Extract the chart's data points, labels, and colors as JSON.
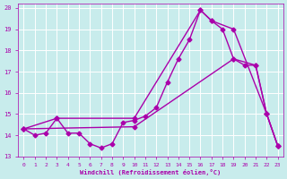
{
  "xlabel": "Windchill (Refroidissement éolien,°C)",
  "xlim": [
    -0.5,
    23.5
  ],
  "ylim": [
    13,
    20.2
  ],
  "yticks": [
    13,
    14,
    15,
    16,
    17,
    18,
    19,
    20
  ],
  "xticks": [
    0,
    1,
    2,
    3,
    4,
    5,
    6,
    7,
    8,
    9,
    10,
    11,
    12,
    13,
    14,
    15,
    16,
    17,
    18,
    19,
    20,
    21,
    22,
    23
  ],
  "background_color": "#c8ecec",
  "line_color": "#aa00aa",
  "grid_color": "#ffffff",
  "line1_x": [
    0,
    1,
    2,
    3,
    4,
    5,
    6,
    7,
    8,
    9,
    10,
    11,
    12,
    13,
    14,
    15,
    16,
    17,
    18,
    19,
    20,
    21,
    22,
    23
  ],
  "line1_y": [
    14.3,
    14.0,
    14.1,
    14.8,
    14.1,
    14.1,
    13.6,
    13.4,
    13.6,
    14.6,
    14.7,
    14.9,
    15.3,
    16.5,
    17.6,
    18.5,
    19.9,
    19.4,
    19.0,
    17.6,
    17.3,
    17.3,
    15.0,
    13.5
  ],
  "line2_x": [
    0,
    3,
    10,
    16,
    17,
    19,
    22,
    23
  ],
  "line2_y": [
    14.3,
    14.8,
    14.8,
    19.9,
    19.4,
    19.0,
    15.0,
    13.5
  ],
  "line3_x": [
    0,
    10,
    19,
    21,
    22,
    23
  ],
  "line3_y": [
    14.3,
    14.4,
    17.6,
    17.3,
    15.0,
    13.5
  ]
}
